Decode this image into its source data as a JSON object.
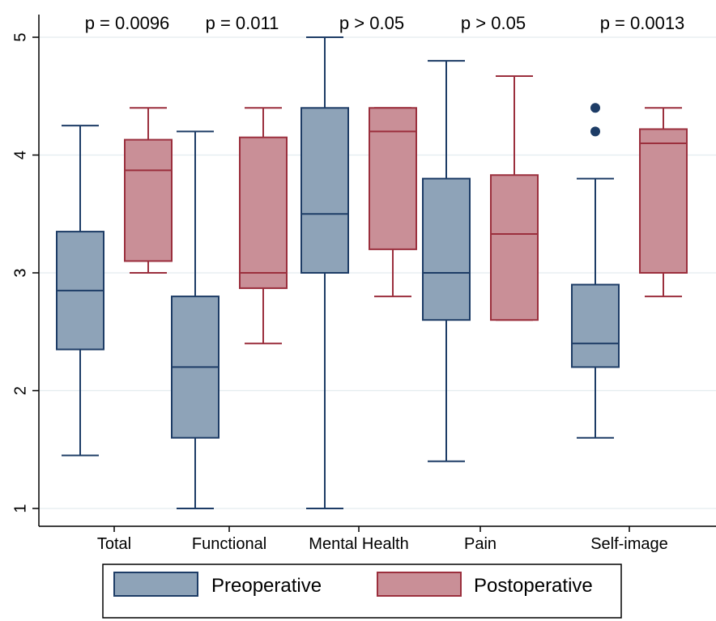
{
  "chart_data": {
    "type": "box",
    "y_range": [
      1,
      5
    ],
    "y_ticks": [
      "1",
      "2",
      "3",
      "4",
      "5"
    ],
    "categories": [
      "Total",
      "Functional",
      "Mental Health",
      "Pain",
      "Self-image"
    ],
    "annotations": [
      "p = 0.0096",
      "p = 0.011",
      "p > 0.05",
      "p > 0.05",
      "p = 0.0013"
    ],
    "grid": true,
    "legend_position": "bottom",
    "series": [
      {
        "name": "Preoperative",
        "fill": "#8ea3b8",
        "stroke": "#1d3c66",
        "boxes": [
          {
            "min": 1.45,
            "q1": 2.35,
            "median": 2.85,
            "q3": 3.35,
            "max": 4.25,
            "outliers": []
          },
          {
            "min": 1.0,
            "q1": 1.6,
            "median": 2.2,
            "q3": 2.8,
            "max": 4.2,
            "outliers": []
          },
          {
            "min": 1.0,
            "q1": 3.0,
            "median": 3.5,
            "q3": 4.4,
            "max": 5.0,
            "outliers": []
          },
          {
            "min": 1.4,
            "q1": 2.6,
            "median": 3.0,
            "q3": 3.8,
            "max": 4.8,
            "outliers": []
          },
          {
            "min": 1.6,
            "q1": 2.2,
            "median": 2.4,
            "q3": 2.9,
            "max": 3.8,
            "outliers": [
              4.2,
              4.4
            ]
          }
        ]
      },
      {
        "name": "Postoperative",
        "fill": "#c98f97",
        "stroke": "#9b2f3d",
        "boxes": [
          {
            "min": 3.0,
            "q1": 3.1,
            "median": 3.87,
            "q3": 4.13,
            "max": 4.4,
            "outliers": []
          },
          {
            "min": 2.4,
            "q1": 2.87,
            "median": 3.0,
            "q3": 4.15,
            "max": 4.4,
            "outliers": []
          },
          {
            "min": 2.8,
            "q1": 3.2,
            "median": 4.2,
            "q3": 4.4,
            "max": 4.4,
            "outliers": []
          },
          {
            "min": 2.6,
            "q1": 2.6,
            "median": 3.33,
            "q3": 3.83,
            "max": 4.67,
            "outliers": []
          },
          {
            "min": 2.8,
            "q1": 3.0,
            "median": 4.1,
            "q3": 4.22,
            "max": 4.4,
            "outliers": []
          }
        ]
      }
    ]
  }
}
